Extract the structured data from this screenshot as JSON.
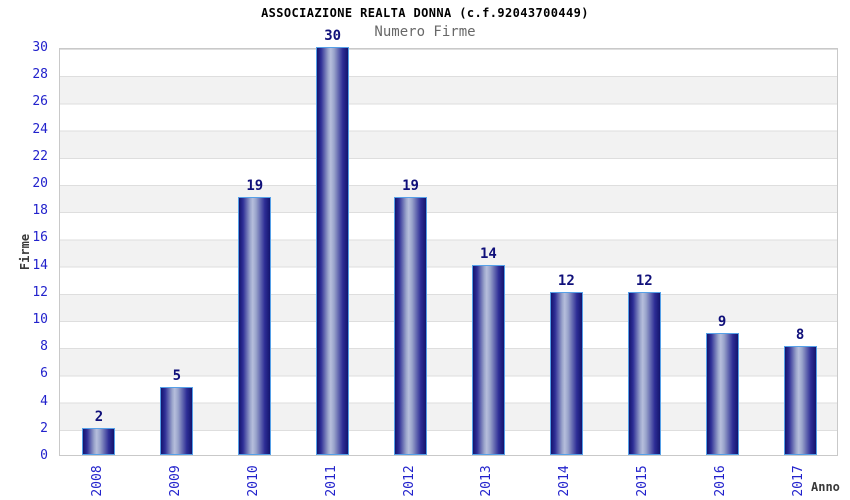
{
  "chart_data": {
    "type": "bar",
    "title": "ASSOCIAZIONE REALTA DONNA (c.f.92043700449)",
    "subtitle": "Numero Firme",
    "xlabel": "Anno",
    "ylabel": "Firme",
    "categories": [
      "2008",
      "2009",
      "2010",
      "2011",
      "2012",
      "2013",
      "2014",
      "2015",
      "2016",
      "2017"
    ],
    "values": [
      2,
      5,
      19,
      30,
      19,
      14,
      12,
      12,
      9,
      8
    ],
    "ylim": [
      0,
      30
    ],
    "ytick_step": 2,
    "grid": "horizontal gridlines with alternating white/gray bands",
    "legend": "none",
    "colors": {
      "tick_label": "#2222cc",
      "value_label": "#10107a",
      "bar_dark": "#14146e",
      "bar_highlight": "#b6bedc",
      "bar_border": "#55a0e8",
      "band_gray": "#f2f2f2",
      "gridline": "#dedede",
      "frame": "#c9c9c9",
      "title": "#000000",
      "subtitle": "#686868",
      "axis_title": "#3a3a3a"
    }
  }
}
